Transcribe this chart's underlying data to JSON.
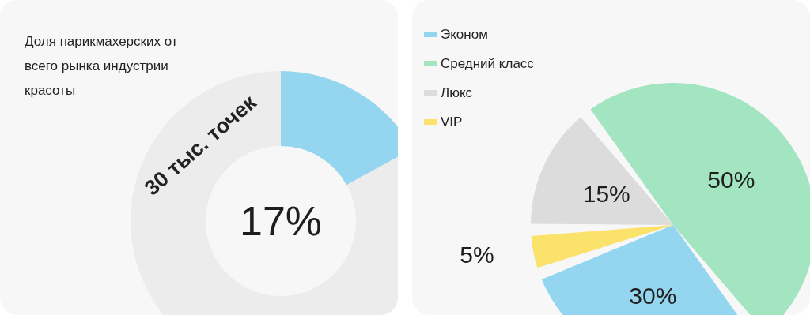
{
  "chart_data": [
    {
      "type": "donut",
      "title": "Доля парикмахерских от всего рынка индустрии красоты",
      "annotations": [
        "30 тыс. точек"
      ],
      "categories": [
        null,
        null
      ],
      "values": [
        17,
        83
      ],
      "colors": [
        "#94d5f0",
        "#ececec"
      ],
      "value_labels": [
        "17%",
        null
      ],
      "legend": false
    },
    {
      "type": "pie",
      "categories": [
        "Эконом",
        "Средний класс",
        "Люкс",
        "VIP"
      ],
      "values": [
        30,
        50,
        15,
        5
      ],
      "colors": [
        "#94d5f0",
        "#a3e4c1",
        "#dcdcdc",
        "#fbe36b"
      ],
      "value_labels": [
        "30%",
        "50%",
        "15%",
        "5%"
      ],
      "legend": "top left"
    }
  ]
}
